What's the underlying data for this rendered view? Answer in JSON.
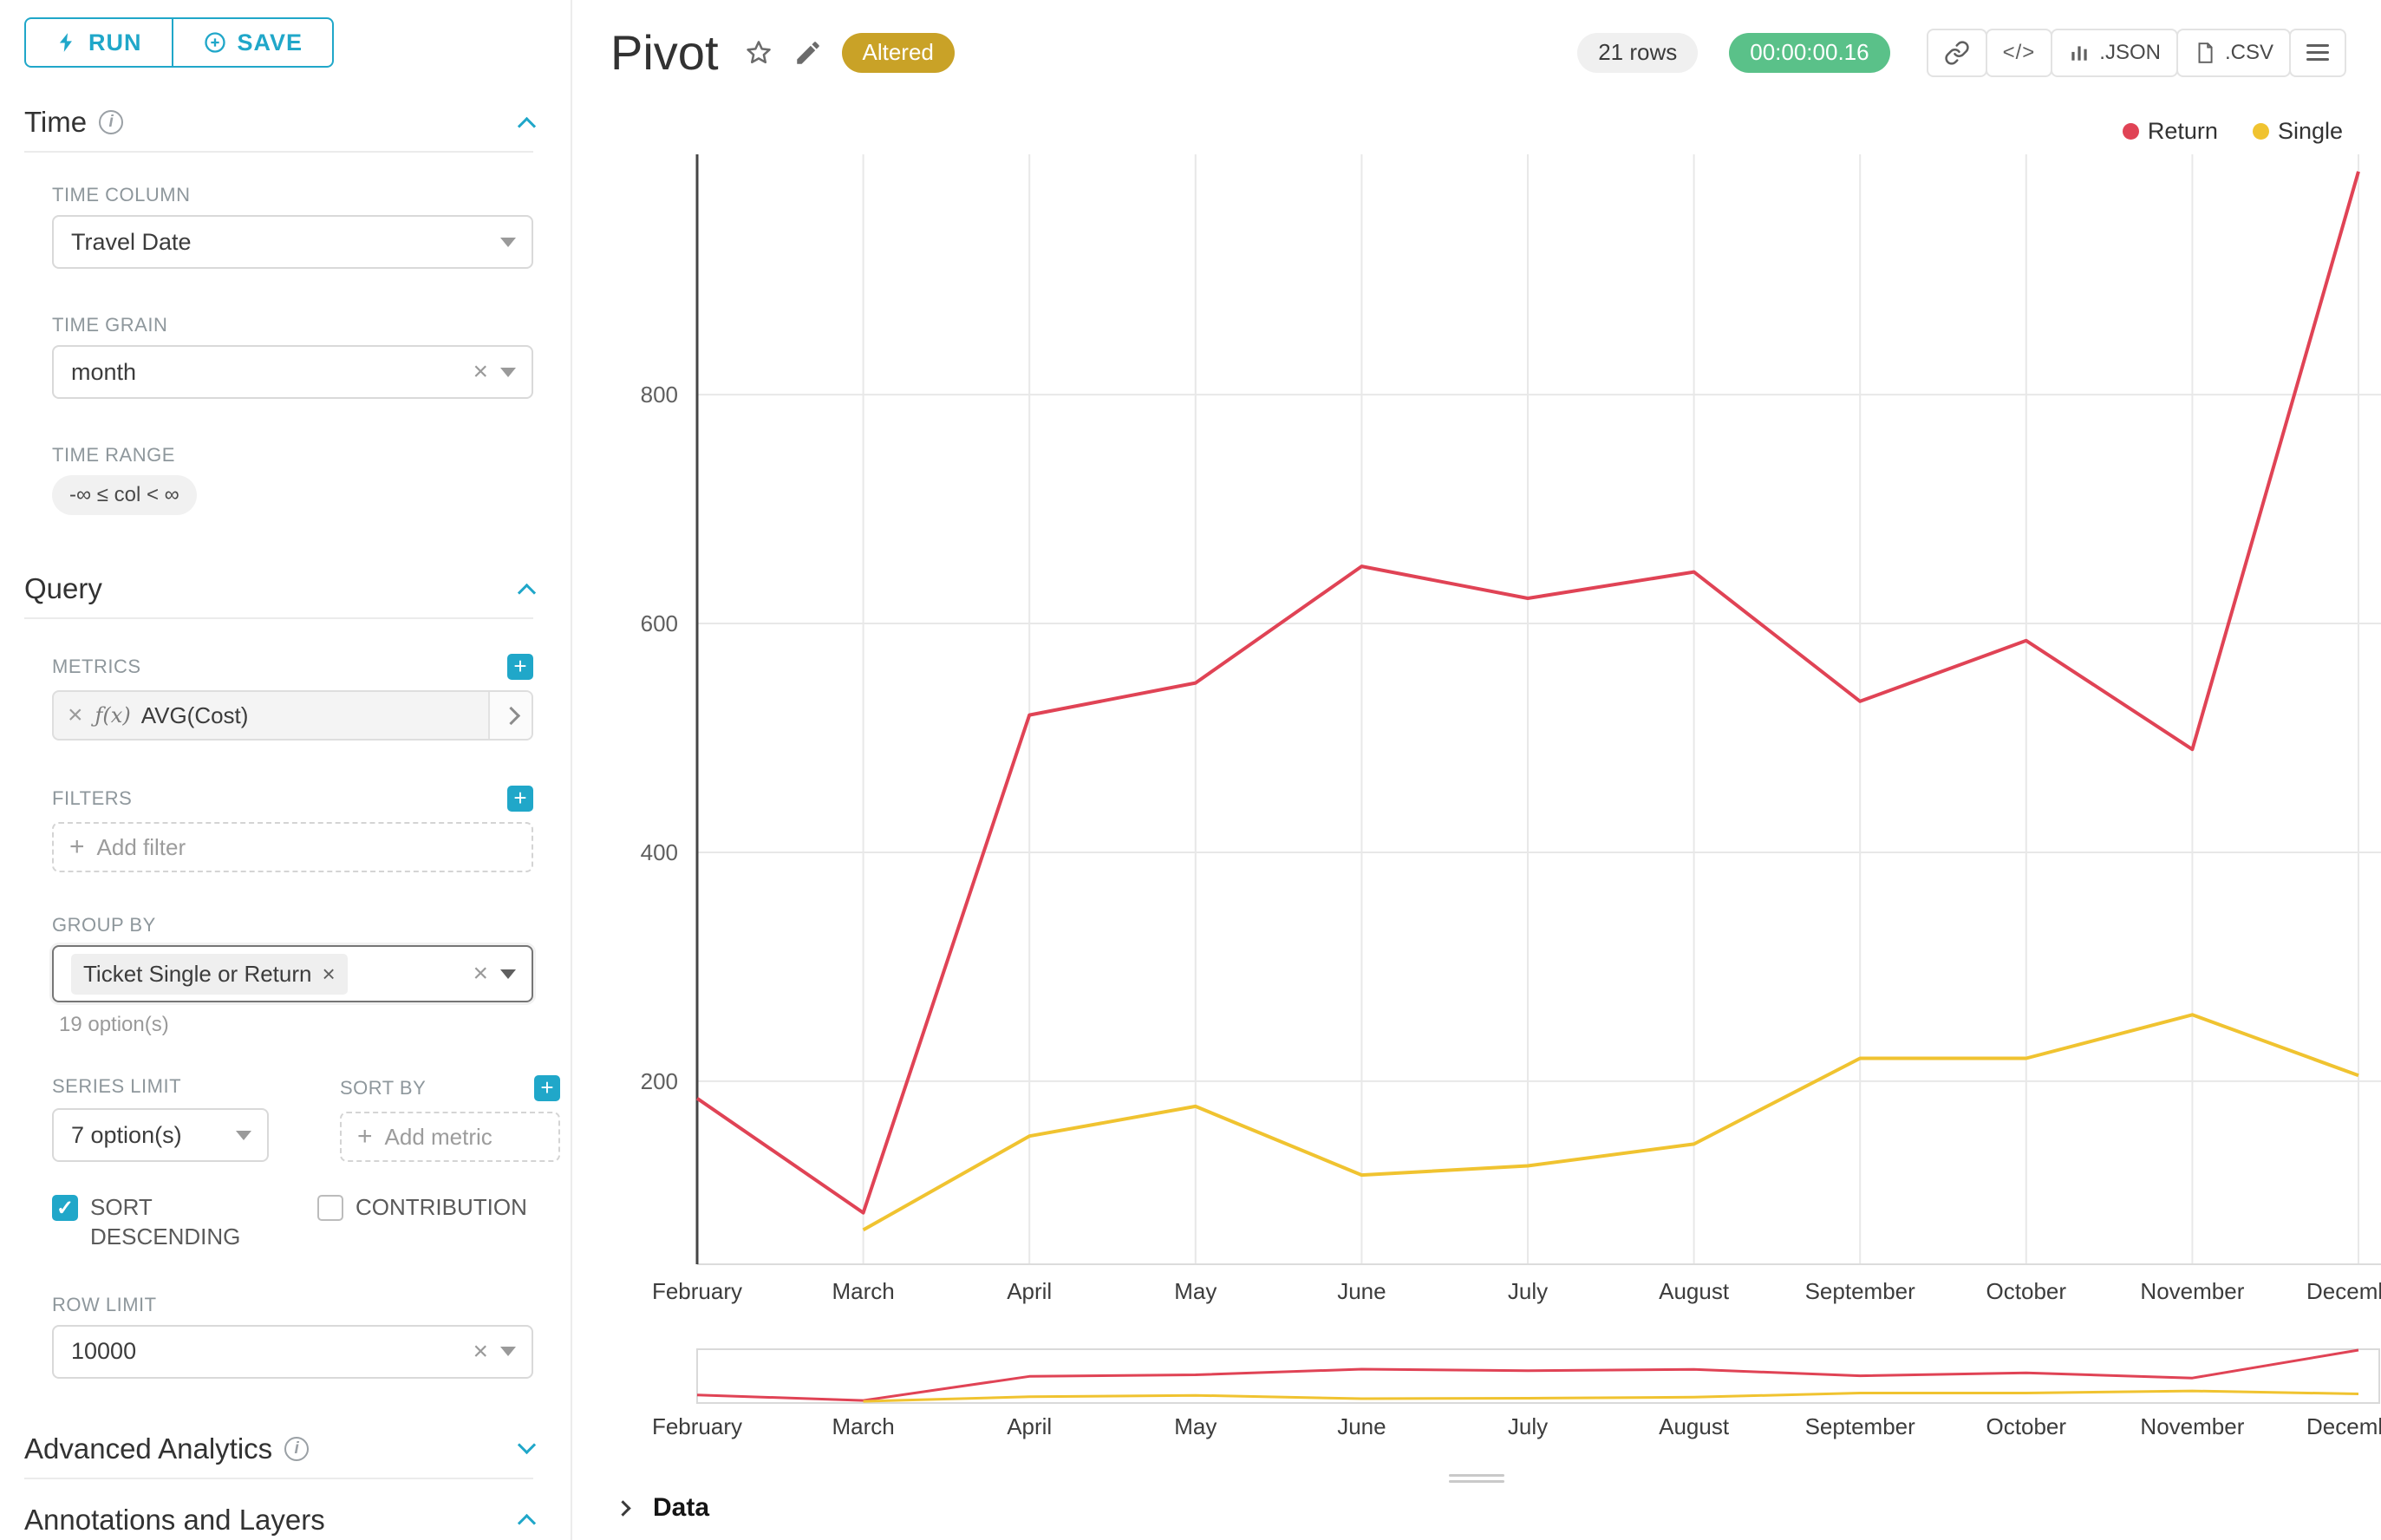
{
  "icons": {
    "close": "×",
    "plus": "+",
    "info": "i",
    "code": "</>",
    "fx": "ƒ(x)"
  },
  "colors": {
    "accent": "#20a7c9",
    "success": "#5ac189",
    "altered_badge_bg": "#c9a227"
  },
  "sidebar": {
    "run_label": "RUN",
    "save_label": "SAVE",
    "time": {
      "title": "Time",
      "time_column": {
        "label": "TIME COLUMN",
        "value": "Travel Date"
      },
      "time_grain": {
        "label": "TIME GRAIN",
        "value": "month"
      },
      "time_range": {
        "label": "TIME RANGE",
        "value": "-∞ ≤ col < ∞"
      }
    },
    "query": {
      "title": "Query",
      "metrics_label": "METRICS",
      "metric_value": "AVG(Cost)",
      "filters_label": "FILTERS",
      "add_filter_placeholder": "Add filter",
      "group_by_label": "GROUP BY",
      "group_by_tag": "Ticket Single or Return",
      "group_by_hint": "19 option(s)",
      "series_limit_label": "SERIES LIMIT",
      "series_limit_value": "7 option(s)",
      "sort_by_label": "SORT BY",
      "add_metric_placeholder": "Add metric",
      "sort_descending": {
        "label": "SORT DESCENDING",
        "checked": true
      },
      "contribution": {
        "label": "CONTRIBUTION",
        "checked": false
      },
      "row_limit_label": "ROW LIMIT",
      "row_limit_value": "10000"
    },
    "advanced_analytics_title": "Advanced Analytics",
    "annotations_title": "Annotations and Layers"
  },
  "header": {
    "title": "Pivot",
    "altered_badge": "Altered",
    "rows_badge": "21 rows",
    "timer_badge": "00:00:00.16",
    "json_label": ".JSON",
    "csv_label": ".CSV"
  },
  "footer": {
    "data_label": "Data"
  },
  "chart_data": {
    "type": "line",
    "title": "Pivot",
    "categories": [
      "February",
      "March",
      "April",
      "May",
      "June",
      "July",
      "August",
      "September",
      "October",
      "November",
      "December"
    ],
    "series": [
      {
        "name": "Return",
        "color": "#e04355",
        "values": [
          185,
          85,
          520,
          548,
          650,
          622,
          645,
          532,
          585,
          490,
          995
        ]
      },
      {
        "name": "Single",
        "color": "#f0c330",
        "values": [
          null,
          70,
          152,
          178,
          118,
          126,
          145,
          220,
          220,
          258,
          205
        ]
      }
    ],
    "ylim": [
      40,
      1010
    ],
    "yticks": [
      200,
      400,
      600,
      800
    ],
    "xlabel": "",
    "ylabel": "",
    "grid": true,
    "legend_position": "top-right"
  }
}
